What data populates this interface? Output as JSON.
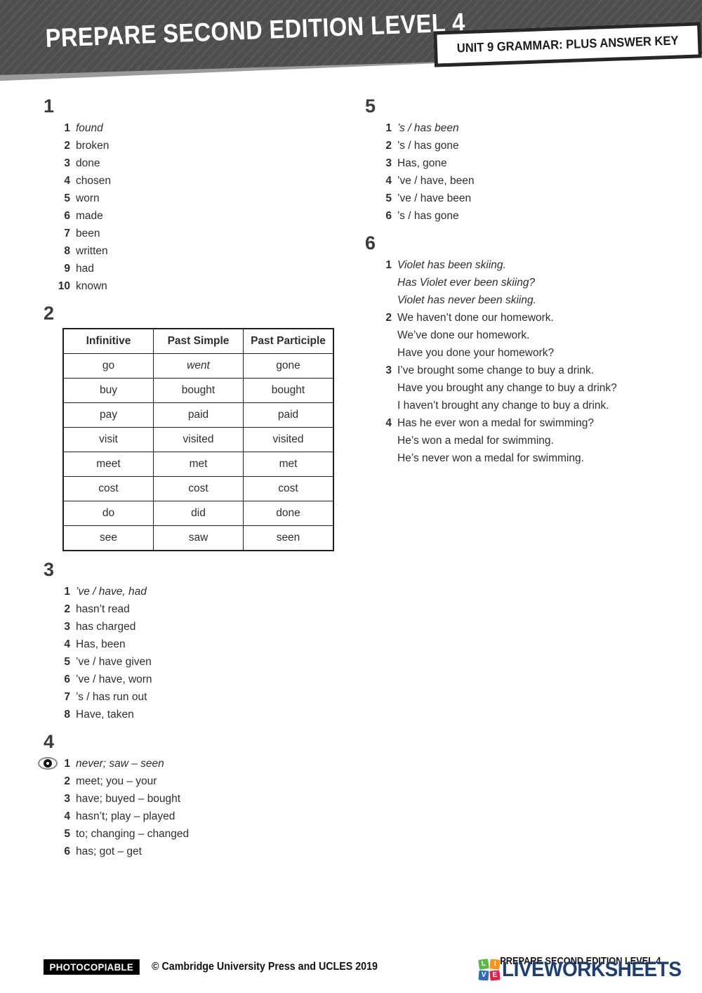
{
  "header": {
    "title": "PREPARE SECOND EDITION LEVEL 4",
    "badge": "UNIT 9 GRAMMAR: PLUS ANSWER KEY"
  },
  "sections": [
    {
      "id": "1",
      "column": "left",
      "type": "list",
      "items": [
        {
          "n": "1",
          "lines": [
            "found"
          ],
          "italic": true
        },
        {
          "n": "2",
          "lines": [
            "broken"
          ]
        },
        {
          "n": "3",
          "lines": [
            "done"
          ]
        },
        {
          "n": "4",
          "lines": [
            "chosen"
          ]
        },
        {
          "n": "5",
          "lines": [
            "worn"
          ]
        },
        {
          "n": "6",
          "lines": [
            "made"
          ]
        },
        {
          "n": "7",
          "lines": [
            "been"
          ]
        },
        {
          "n": "8",
          "lines": [
            "written"
          ]
        },
        {
          "n": "9",
          "lines": [
            "had"
          ]
        },
        {
          "n": "10",
          "lines": [
            "known"
          ]
        }
      ]
    },
    {
      "id": "2",
      "column": "left",
      "type": "table",
      "table": {
        "headers": [
          "Infinitive",
          "Past Simple",
          "Past Participle"
        ],
        "rows": [
          [
            "go",
            "went",
            "gone"
          ],
          [
            "buy",
            "bought",
            "bought"
          ],
          [
            "pay",
            "paid",
            "paid"
          ],
          [
            "visit",
            "visited",
            "visited"
          ],
          [
            "meet",
            "met",
            "met"
          ],
          [
            "cost",
            "cost",
            "cost"
          ],
          [
            "do",
            "did",
            "done"
          ],
          [
            "see",
            "saw",
            "seen"
          ]
        ],
        "italic_cells": [
          [
            0,
            1
          ]
        ]
      }
    },
    {
      "id": "3",
      "column": "left",
      "type": "list",
      "items": [
        {
          "n": "1",
          "lines": [
            "’ve / have, had"
          ],
          "italic": true
        },
        {
          "n": "2",
          "lines": [
            "hasn’t read"
          ]
        },
        {
          "n": "3",
          "lines": [
            "has charged"
          ]
        },
        {
          "n": "4",
          "lines": [
            "Has, been"
          ]
        },
        {
          "n": "5",
          "lines": [
            "’ve / have given"
          ]
        },
        {
          "n": "6",
          "lines": [
            "’ve / have, worn"
          ]
        },
        {
          "n": "7",
          "lines": [
            "’s / has run out"
          ]
        },
        {
          "n": "8",
          "lines": [
            "Have, taken"
          ]
        }
      ]
    },
    {
      "id": "4",
      "column": "left",
      "type": "list",
      "items": [
        {
          "n": "1",
          "lines": [
            "never; saw – seen"
          ],
          "italic": true,
          "icon": "eye"
        },
        {
          "n": "2",
          "lines": [
            "meet; you – your"
          ]
        },
        {
          "n": "3",
          "lines": [
            "have; buyed – bought"
          ]
        },
        {
          "n": "4",
          "lines": [
            "hasn’t; play – played"
          ]
        },
        {
          "n": "5",
          "lines": [
            "to; changing – changed"
          ]
        },
        {
          "n": "6",
          "lines": [
            "has; got – get"
          ]
        }
      ]
    },
    {
      "id": "5",
      "column": "right",
      "type": "list",
      "items": [
        {
          "n": "1",
          "lines": [
            "’s / has been"
          ],
          "italic": true
        },
        {
          "n": "2",
          "lines": [
            "’s / has gone"
          ]
        },
        {
          "n": "3",
          "lines": [
            "Has, gone"
          ]
        },
        {
          "n": "4",
          "lines": [
            "’ve / have, been"
          ]
        },
        {
          "n": "5",
          "lines": [
            "’ve / have been"
          ]
        },
        {
          "n": "6",
          "lines": [
            "’s / has gone"
          ]
        }
      ]
    },
    {
      "id": "6",
      "column": "right",
      "type": "list",
      "items": [
        {
          "n": "1",
          "lines": [
            "Violet has been skiing.",
            "Has Violet ever been skiing?",
            "Violet has never been skiing."
          ],
          "italic": true
        },
        {
          "n": "2",
          "lines": [
            "We haven’t done our homework.",
            "We’ve done our homework.",
            "Have you done your homework?"
          ]
        },
        {
          "n": "3",
          "lines": [
            "I’ve brought some change to buy a drink.",
            "Have you brought any change to buy a drink?",
            "I haven’t brought any change to buy a drink."
          ]
        },
        {
          "n": "4",
          "lines": [
            "Has he ever won a medal for swimming?",
            "He’s won a medal for swimming.",
            "He’s never won a medal for swimming."
          ]
        }
      ]
    }
  ],
  "footer": {
    "photocopiable": "PHOTOCOPIABLE",
    "copyright": "© Cambridge University Press and UCLES 2019",
    "series_title": "PREPARE SECOND EDITION LEVEL 4",
    "logo": {
      "wordmark": "LIVEWORKSHEETS",
      "wordmark_color": "#1c3e78",
      "tiles": [
        {
          "letter": "L",
          "color": "#5cb947",
          "tilt": -8
        },
        {
          "letter": "I",
          "color": "#f7941d",
          "tilt": 5
        },
        {
          "letter": "V",
          "color": "#2e6db4",
          "tilt": 4
        },
        {
          "letter": "E",
          "color": "#ed1b45",
          "tilt": -5
        }
      ]
    }
  }
}
